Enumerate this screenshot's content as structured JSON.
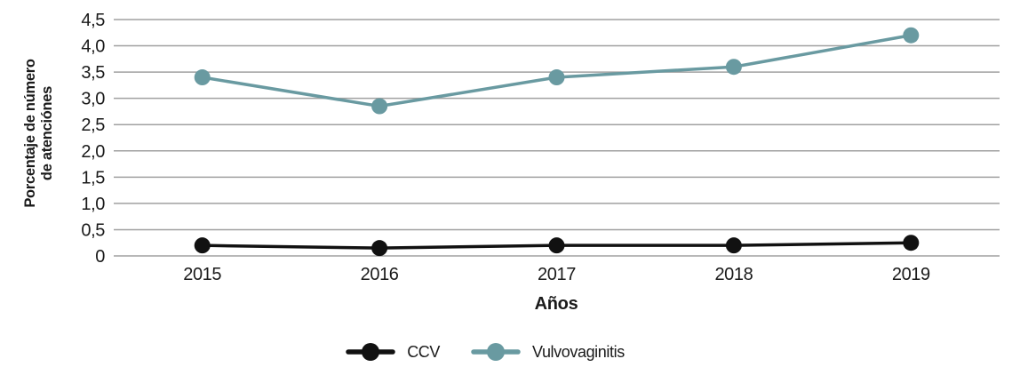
{
  "chart_data": {
    "type": "line",
    "xlabel": "Años",
    "ylabel": "Porcentaje de número\nde atenciónes",
    "categories": [
      "2015",
      "2016",
      "2017",
      "2018",
      "2019"
    ],
    "series": [
      {
        "name": "CCV",
        "color": "#111111",
        "values": [
          0.2,
          0.15,
          0.2,
          0.2,
          0.25
        ]
      },
      {
        "name": "Vulvovaginitis",
        "color": "#699aa1",
        "values": [
          3.4,
          2.85,
          3.4,
          3.6,
          4.2
        ]
      }
    ],
    "ylim": [
      0,
      4.5
    ],
    "ytick_step": 0.5,
    "ytick_labels": [
      "0",
      "0,5",
      "1,0",
      "1,5",
      "2,0",
      "2,5",
      "3,0",
      "3,5",
      "4,0",
      "4,5"
    ],
    "grid": "horizontal",
    "grid_color": "#a0a0a0",
    "background": "#ffffff",
    "legend_position": "bottom"
  }
}
